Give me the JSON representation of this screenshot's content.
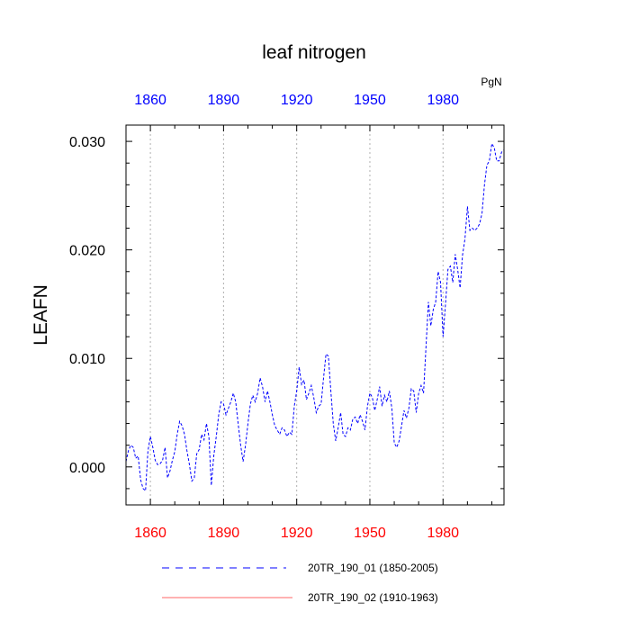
{
  "chart_data": {
    "type": "line",
    "title": "leaf nitrogen",
    "units": "PgN",
    "ylabel": "LEAFN",
    "xlim": [
      1850,
      2005
    ],
    "ylim": [
      -0.0035,
      0.0315
    ],
    "yticks": [
      "0.000",
      "0.010",
      "0.020",
      "0.030"
    ],
    "ytick_values": [
      0.0,
      0.01,
      0.02,
      0.03
    ],
    "xticks_bottom": [
      "1860",
      "1890",
      "1920",
      "1950",
      "1980"
    ],
    "xticks_top": [
      "1860",
      "1890",
      "1920",
      "1950",
      "1980"
    ],
    "xtick_values": [
      1860,
      1890,
      1920,
      1950,
      1980
    ],
    "xtick_bottom_color": "#ff0000",
    "xtick_top_color": "#0000ff",
    "grid": "vertical dotted at major x ticks",
    "legend_position": "bottom",
    "series": [
      {
        "name": "20TR_190_01 (1850-2005)",
        "color": "#0000ff",
        "style": "dashed",
        "x": [
          1850,
          1851,
          1852,
          1853,
          1854,
          1855,
          1856,
          1857,
          1858,
          1859,
          1860,
          1861,
          1862,
          1863,
          1864,
          1865,
          1866,
          1867,
          1868,
          1869,
          1870,
          1871,
          1872,
          1873,
          1874,
          1875,
          1876,
          1877,
          1878,
          1879,
          1880,
          1881,
          1882,
          1883,
          1884,
          1885,
          1886,
          1887,
          1888,
          1889,
          1890,
          1891,
          1892,
          1893,
          1894,
          1895,
          1896,
          1897,
          1898,
          1899,
          1900,
          1901,
          1902,
          1903,
          1904,
          1905,
          1906,
          1907,
          1908,
          1909,
          1910,
          1911,
          1912,
          1913,
          1914,
          1915,
          1916,
          1917,
          1918,
          1919,
          1920,
          1921,
          1922,
          1923,
          1924,
          1925,
          1926,
          1927,
          1928,
          1929,
          1930,
          1931,
          1932,
          1933,
          1934,
          1935,
          1936,
          1937,
          1938,
          1939,
          1940,
          1941,
          1942,
          1943,
          1944,
          1945,
          1946,
          1947,
          1948,
          1949,
          1950,
          1951,
          1952,
          1953,
          1954,
          1955,
          1956,
          1957,
          1958,
          1959,
          1960,
          1961,
          1962,
          1963,
          1964,
          1965,
          1966,
          1967,
          1968,
          1969,
          1970,
          1971,
          1972,
          1973,
          1974,
          1975,
          1976,
          1977,
          1978,
          1979,
          1980,
          1981,
          1982,
          1983,
          1984,
          1985,
          1986,
          1987,
          1988,
          1989,
          1990,
          1991,
          1992,
          1993,
          1994,
          1995,
          1996,
          1997,
          1998,
          1999,
          2000,
          2001,
          2002,
          2003,
          2004,
          2005
        ],
        "values": [
          0.0005,
          0.0015,
          0.002,
          0.0018,
          0.0008,
          0.001,
          -0.0012,
          -0.002,
          -0.0022,
          0.0015,
          0.0028,
          0.0018,
          0.0006,
          0.0002,
          0.0003,
          0.0006,
          0.0018,
          -0.001,
          -0.0004,
          0.0006,
          0.0014,
          0.003,
          0.0042,
          0.0038,
          0.003,
          0.0015,
          0.0002,
          -0.0013,
          -0.001,
          0.0012,
          0.0016,
          0.003,
          0.0025,
          0.004,
          0.0028,
          -0.0017,
          0.001,
          0.0028,
          0.0048,
          0.006,
          0.0058,
          0.0048,
          0.0054,
          0.006,
          0.0068,
          0.006,
          0.004,
          0.002,
          0.0005,
          0.002,
          0.004,
          0.0058,
          0.0066,
          0.006,
          0.0068,
          0.0082,
          0.0074,
          0.006,
          0.007,
          0.006,
          0.0048,
          0.0038,
          0.0034,
          0.003,
          0.0036,
          0.0034,
          0.0028,
          0.0032,
          0.003,
          0.0056,
          0.007,
          0.0092,
          0.0076,
          0.008,
          0.0062,
          0.0068,
          0.0075,
          0.0064,
          0.005,
          0.0056,
          0.0058,
          0.0082,
          0.0104,
          0.0102,
          0.007,
          0.004,
          0.0024,
          0.0036,
          0.005,
          0.003,
          0.0028,
          0.0036,
          0.0034,
          0.0044,
          0.0046,
          0.004,
          0.0048,
          0.0042,
          0.0034,
          0.0056,
          0.0068,
          0.0064,
          0.0052,
          0.0062,
          0.0074,
          0.0056,
          0.0066,
          0.006,
          0.007,
          0.0054,
          0.0022,
          0.0018,
          0.0024,
          0.0038,
          0.0052,
          0.0045,
          0.0054,
          0.0072,
          0.007,
          0.005,
          0.0068,
          0.0075,
          0.0068,
          0.011,
          0.0152,
          0.013,
          0.0145,
          0.0152,
          0.018,
          0.017,
          0.012,
          0.015,
          0.0182,
          0.0185,
          0.017,
          0.0196,
          0.0182,
          0.0165,
          0.0195,
          0.021,
          0.024,
          0.0218,
          0.022,
          0.0218,
          0.022,
          0.0224,
          0.0234,
          0.026,
          0.0278,
          0.0282,
          0.0298,
          0.0294,
          0.0282,
          0.0282,
          0.029,
          0.0292
        ]
      },
      {
        "name": "20TR_190_02 (1910-1963)",
        "color": "#ff6666",
        "style": "solid"
      }
    ]
  }
}
